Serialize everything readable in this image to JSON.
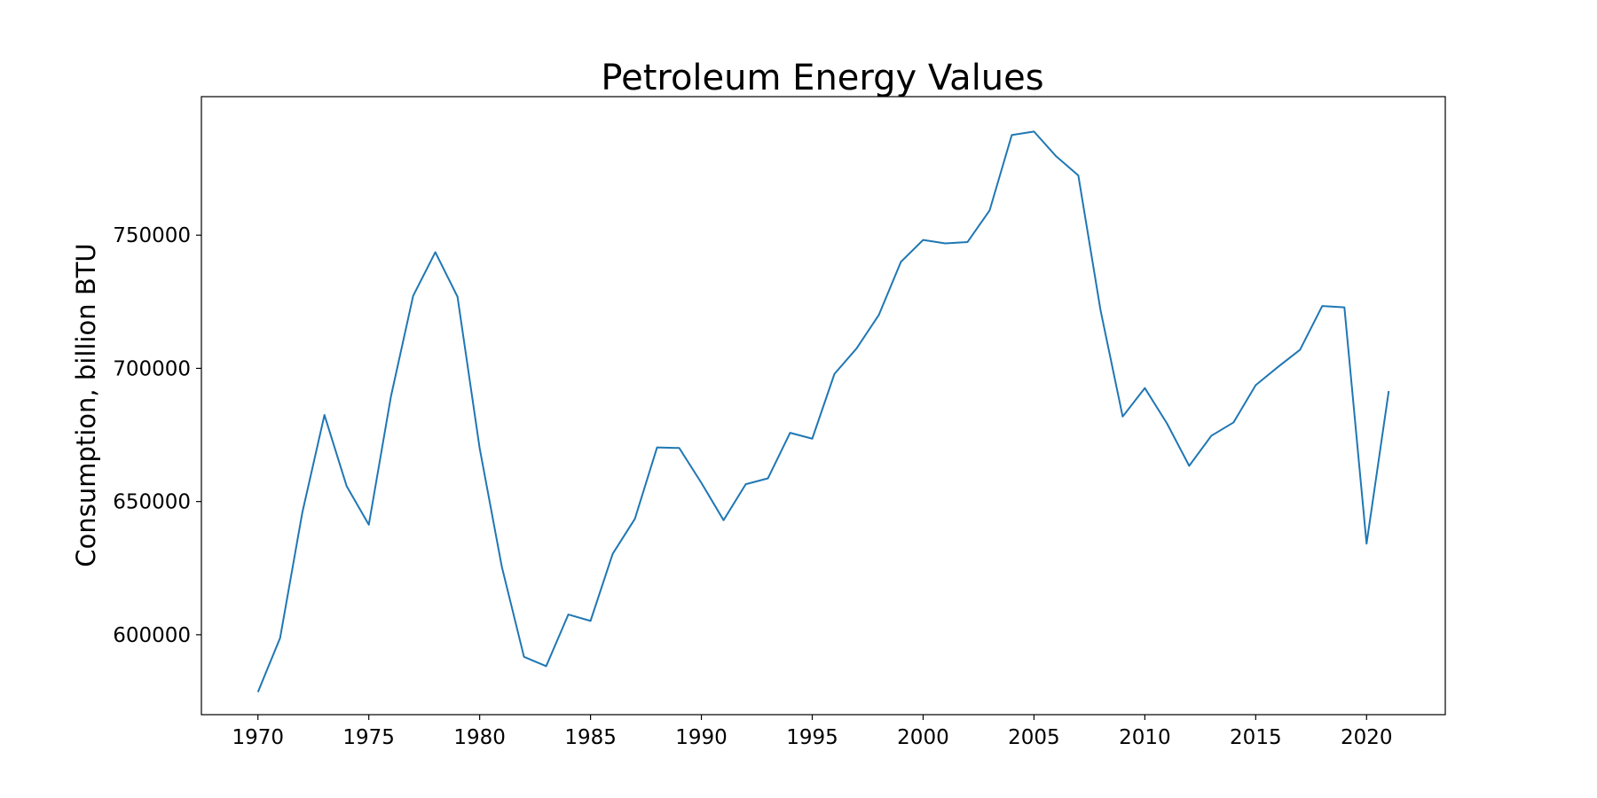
{
  "chart_data": {
    "type": "line",
    "title": "Petroleum Energy Values",
    "xlabel": "",
    "ylabel": "Consumption, billion BTU",
    "xlim": [
      1967.45,
      2023.55
    ],
    "ylim": [
      570000,
      802000
    ],
    "x_ticks": [
      1970,
      1975,
      1980,
      1985,
      1990,
      1995,
      2000,
      2005,
      2010,
      2015,
      2020
    ],
    "y_ticks": [
      600000,
      650000,
      700000,
      750000
    ],
    "grid": false,
    "series": [
      {
        "color": "#1f77b4",
        "x": [
          1970,
          1971,
          1972,
          1973,
          1974,
          1975,
          1976,
          1977,
          1978,
          1979,
          1980,
          1981,
          1982,
          1983,
          1984,
          1985,
          1986,
          1987,
          1988,
          1989,
          1990,
          1991,
          1992,
          1993,
          1994,
          1995,
          1996,
          1997,
          1998,
          1999,
          2000,
          2001,
          2002,
          2003,
          2004,
          2005,
          2006,
          2007,
          2008,
          2009,
          2010,
          2011,
          2012,
          2013,
          2014,
          2015,
          2016,
          2017,
          2018,
          2019,
          2020,
          2021
        ],
        "values": [
          578500,
          598800,
          645800,
          682500,
          655800,
          641300,
          689500,
          727200,
          743600,
          726900,
          670000,
          625500,
          591700,
          588200,
          607600,
          605200,
          630400,
          643500,
          670300,
          670100,
          657000,
          643000,
          656500,
          658700,
          675800,
          673600,
          697900,
          707500,
          720000,
          740000,
          748200,
          746900,
          747400,
          759300,
          787600,
          788900,
          779600,
          772400,
          721900,
          681900,
          692600,
          679300,
          663400,
          674700,
          679700,
          693700,
          700500,
          707000,
          723400,
          722900,
          634200,
          691500
        ]
      }
    ]
  }
}
